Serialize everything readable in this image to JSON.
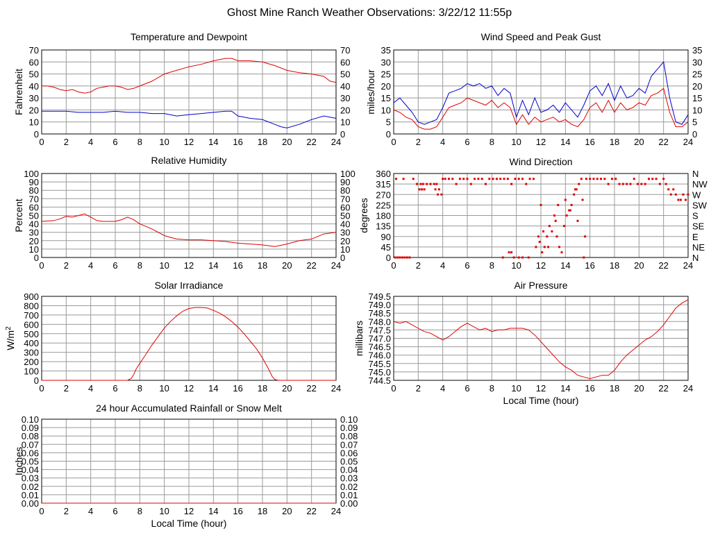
{
  "page_title": "Ghost Mine Ranch Weather Observations: 3/22/12 11:55p",
  "colors": {
    "red": "#e00000",
    "blue": "#0000cc",
    "grid": "#999999"
  },
  "chart_data": [
    {
      "id": "temp",
      "type": "line",
      "title": "Temperature and Dewpoint",
      "ylabel": "Fahrenheit",
      "xlabel": "",
      "xlim": [
        0,
        24
      ],
      "ylim": [
        0,
        70
      ],
      "x_ticks": [
        "0",
        "2",
        "4",
        "6",
        "8",
        "10",
        "12",
        "14",
        "16",
        "18",
        "20",
        "22",
        "24"
      ],
      "y_ticks": [
        "0",
        "10",
        "20",
        "30",
        "40",
        "50",
        "60",
        "70"
      ],
      "right_axis_labels": [
        "0",
        "10",
        "20",
        "30",
        "40",
        "50",
        "60",
        "70"
      ],
      "grid": true,
      "series": [
        {
          "color": "red",
          "x": [
            0,
            0.5,
            1,
            1.5,
            2,
            2.5,
            3,
            3.5,
            4,
            4.5,
            5,
            5.5,
            6,
            6.5,
            7,
            7.5,
            8,
            8.5,
            9,
            9.5,
            10,
            11,
            12,
            13,
            14,
            15,
            15.5,
            16,
            17,
            18,
            19,
            20,
            21,
            22,
            23,
            23.5,
            24
          ],
          "y": [
            40,
            40,
            39,
            37,
            36,
            37,
            35,
            34,
            35,
            38,
            39,
            40,
            40,
            39,
            37,
            38,
            40,
            42,
            44,
            47,
            50,
            53,
            56,
            58,
            61,
            63,
            63,
            61,
            61,
            60,
            57,
            53,
            51,
            50,
            48,
            44,
            43
          ]
        },
        {
          "color": "blue",
          "x": [
            0,
            1,
            2,
            3,
            4,
            5,
            6,
            7,
            8,
            9,
            10,
            11,
            12,
            13,
            14,
            15,
            15.5,
            16,
            17,
            18,
            19,
            19.5,
            20,
            21,
            22,
            23,
            24
          ],
          "y": [
            19,
            19,
            19,
            18,
            18,
            18,
            19,
            18,
            18,
            17,
            17,
            15,
            16,
            17,
            18,
            19,
            19,
            15,
            13,
            12,
            8,
            6,
            5,
            8,
            12,
            15,
            13
          ]
        }
      ]
    },
    {
      "id": "wind",
      "type": "line",
      "title": "Wind Speed and Peak Gust",
      "ylabel": "miles/hour",
      "xlabel": "",
      "xlim": [
        0,
        24
      ],
      "ylim": [
        0,
        35
      ],
      "x_ticks": [
        "0",
        "2",
        "4",
        "6",
        "8",
        "10",
        "12",
        "14",
        "16",
        "18",
        "20",
        "22",
        "24"
      ],
      "y_ticks": [
        "0",
        "5",
        "10",
        "15",
        "20",
        "25",
        "30",
        "35"
      ],
      "right_axis_labels": [
        "0",
        "5",
        "10",
        "15",
        "20",
        "25",
        "30",
        "35"
      ],
      "grid": true,
      "series": [
        {
          "color": "blue",
          "x": [
            0,
            0.5,
            1,
            1.5,
            2,
            2.5,
            3,
            3.5,
            4,
            4.5,
            5,
            5.5,
            6,
            6.5,
            7,
            7.5,
            8,
            8.5,
            9,
            9.5,
            10,
            10.5,
            11,
            11.5,
            12,
            12.5,
            13,
            13.5,
            14,
            14.5,
            15,
            15.5,
            16,
            16.5,
            17,
            17.5,
            18,
            18.5,
            19,
            19.5,
            20,
            20.5,
            21,
            21.5,
            22,
            22.5,
            23,
            23.5,
            24
          ],
          "y": [
            13,
            15,
            12,
            9,
            5,
            4,
            5,
            6,
            11,
            17,
            18,
            19,
            21,
            20,
            21,
            19,
            20,
            16,
            19,
            17,
            7,
            14,
            8,
            15,
            9,
            10,
            12,
            9,
            13,
            10,
            7,
            12,
            18,
            20,
            16,
            21,
            14,
            20,
            15,
            16,
            19,
            17,
            24,
            27,
            30,
            15,
            5,
            4,
            8
          ]
        },
        {
          "color": "red",
          "x": [
            0,
            0.5,
            1,
            1.5,
            2,
            2.5,
            3,
            3.5,
            4,
            4.5,
            5,
            5.5,
            6,
            6.5,
            7,
            7.5,
            8,
            8.5,
            9,
            9.5,
            10,
            10.5,
            11,
            11.5,
            12,
            12.5,
            13,
            13.5,
            14,
            14.5,
            15,
            15.5,
            16,
            16.5,
            17,
            17.5,
            18,
            18.5,
            19,
            19.5,
            20,
            20.5,
            21,
            21.5,
            22,
            22.5,
            23,
            23.5,
            24
          ],
          "y": [
            10,
            9,
            7,
            6,
            3,
            2,
            2,
            3,
            7,
            11,
            12,
            13,
            15,
            14,
            13,
            12,
            14,
            11,
            13,
            11,
            4,
            8,
            4,
            7,
            5,
            6,
            7,
            5,
            6,
            4,
            3,
            6,
            11,
            13,
            9,
            14,
            9,
            13,
            10,
            11,
            13,
            12,
            16,
            17,
            19,
            9,
            3,
            3,
            5
          ]
        }
      ]
    },
    {
      "id": "rh",
      "type": "line",
      "title": "Relative Humidity",
      "ylabel": "Percent",
      "xlabel": "",
      "xlim": [
        0,
        24
      ],
      "ylim": [
        0,
        100
      ],
      "x_ticks": [
        "0",
        "2",
        "4",
        "6",
        "8",
        "10",
        "12",
        "14",
        "16",
        "18",
        "20",
        "22",
        "24"
      ],
      "y_ticks": [
        "0",
        "10",
        "20",
        "30",
        "40",
        "50",
        "60",
        "70",
        "80",
        "90",
        "100"
      ],
      "right_axis_labels": [
        "0",
        "10",
        "20",
        "30",
        "40",
        "50",
        "60",
        "70",
        "80",
        "90",
        "100"
      ],
      "grid": true,
      "series": [
        {
          "color": "red",
          "x": [
            0,
            1,
            1.5,
            2,
            2.5,
            3,
            3.5,
            4,
            4.5,
            5,
            6,
            6.5,
            7,
            7.5,
            8,
            9,
            10,
            11,
            12,
            13,
            14,
            15,
            16,
            17,
            18,
            19,
            20,
            21,
            22,
            23,
            24
          ],
          "y": [
            43,
            44,
            46,
            49,
            48,
            50,
            52,
            48,
            44,
            43,
            43,
            45,
            48,
            45,
            40,
            34,
            26,
            22,
            21,
            21,
            20,
            19,
            17,
            16,
            15,
            13,
            16,
            20,
            22,
            28,
            30
          ]
        }
      ]
    },
    {
      "id": "winddir",
      "type": "scatter",
      "title": "Wind Direction",
      "ylabel": "degrees",
      "xlabel": "",
      "xlim": [
        0,
        24
      ],
      "ylim": [
        0,
        360
      ],
      "x_ticks": [
        "0",
        "2",
        "4",
        "6",
        "8",
        "10",
        "12",
        "14",
        "16",
        "18",
        "20",
        "22",
        "24"
      ],
      "y_ticks": [
        "0",
        "45",
        "90",
        "135",
        "180",
        "225",
        "270",
        "315",
        "360"
      ],
      "right_axis_labels": [
        "N",
        "NE",
        "E",
        "SE",
        "S",
        "SW",
        "W",
        "NW",
        "N"
      ],
      "grid": true,
      "series": [
        {
          "color": "red",
          "x": [
            0.1,
            0.3,
            0.5,
            0.7,
            0.9,
            1.1,
            1.3,
            0.2,
            0.8,
            1.6,
            1.9,
            2.2,
            2.4,
            2.7,
            3.0,
            3.3,
            3.5,
            3.7,
            3.9,
            2.1,
            2.3,
            2.5,
            3.4,
            3.6,
            4.0,
            4.2,
            4.5,
            4.8,
            5.1,
            5.4,
            5.7,
            6.0,
            6.3,
            6.6,
            6.9,
            7.2,
            7.5,
            7.8,
            8.1,
            8.4,
            8.7,
            9.0,
            9.3,
            9.6,
            9.9,
            10.2,
            10.5,
            10.8,
            11.1,
            11.4,
            9.8,
            10.5,
            11.6,
            11.8,
            12.0,
            12.1,
            12.3,
            12.5,
            12.7,
            12.9,
            13.1,
            13.3,
            13.5,
            13.7,
            13.9,
            14.1,
            14.3,
            14.5,
            14.7,
            14.9,
            15.1,
            15.3,
            15.5,
            15.7,
            16.0,
            16.3,
            16.6,
            16.9,
            17.2,
            17.5,
            17.8,
            18.1,
            18.4,
            18.7,
            19.0,
            19.3,
            19.6,
            19.9,
            20.2,
            20.5,
            20.8,
            21.1,
            21.4,
            21.7,
            22.0,
            22.2,
            22.4,
            22.6,
            22.8,
            23.0,
            23.2,
            23.4,
            23.6,
            23.8,
            24.0,
            9.4,
            10.2,
            11.9,
            12.2,
            13.4,
            14.0,
            14.4,
            15.0,
            15.6,
            8.9,
            9.6,
            11.0,
            12.6,
            13.2,
            14.8,
            15.4
          ],
          "y": [
            0,
            0,
            0,
            0,
            0,
            0,
            0,
            337,
            337,
            337,
            315,
            315,
            315,
            315,
            315,
            315,
            315,
            292,
            270,
            292,
            292,
            292,
            292,
            270,
            337,
            337,
            337,
            337,
            315,
            337,
            337,
            337,
            315,
            337,
            337,
            337,
            315,
            337,
            337,
            337,
            337,
            337,
            337,
            315,
            337,
            337,
            337,
            315,
            337,
            337,
            0,
            0,
            45,
            90,
            225,
            22,
            45,
            90,
            135,
            112,
            180,
            90,
            45,
            22,
            135,
            180,
            202,
            225,
            270,
            292,
            315,
            337,
            0,
            337,
            337,
            337,
            337,
            337,
            337,
            315,
            337,
            337,
            315,
            315,
            315,
            315,
            337,
            315,
            315,
            315,
            337,
            337,
            337,
            315,
            337,
            315,
            292,
            270,
            292,
            270,
            247,
            247,
            270,
            247,
            270,
            22,
            0,
            67,
            112,
            225,
            247,
            202,
            157,
            90,
            0,
            22,
            0,
            45,
            157,
            292,
            247
          ]
        }
      ]
    },
    {
      "id": "solar",
      "type": "line",
      "title": "Solar Irradiance",
      "ylabel": "W/m2",
      "xlabel": "",
      "xlim": [
        0,
        24
      ],
      "ylim": [
        0,
        900
      ],
      "x_ticks": [
        "0",
        "2",
        "4",
        "6",
        "8",
        "10",
        "12",
        "14",
        "16",
        "18",
        "20",
        "22",
        "24"
      ],
      "y_ticks": [
        "0",
        "100",
        "200",
        "300",
        "400",
        "500",
        "600",
        "700",
        "800",
        "900"
      ],
      "right_axis_labels": [],
      "grid": true,
      "series": [
        {
          "color": "red",
          "x": [
            0,
            6,
            7,
            7.3,
            7.5,
            7.7,
            8,
            8.5,
            9,
            9.5,
            10,
            10.5,
            11,
            11.5,
            12,
            12.5,
            13,
            13.5,
            14,
            14.5,
            15,
            15.5,
            16,
            16.5,
            17,
            17.5,
            18,
            18.5,
            18.8,
            19,
            19.3,
            20,
            24
          ],
          "y": [
            0,
            0,
            0,
            20,
            60,
            120,
            180,
            280,
            380,
            470,
            560,
            630,
            690,
            740,
            770,
            780,
            780,
            775,
            750,
            720,
            680,
            630,
            570,
            500,
            420,
            340,
            240,
            120,
            40,
            10,
            0,
            0,
            0
          ]
        }
      ]
    },
    {
      "id": "pressure",
      "type": "line",
      "title": "Air Pressure",
      "ylabel": "millibars",
      "xlabel": "Local Time (hour)",
      "xlim": [
        0,
        24
      ],
      "ylim": [
        744.5,
        749.5
      ],
      "x_ticks": [
        "0",
        "2",
        "4",
        "6",
        "8",
        "10",
        "12",
        "14",
        "16",
        "18",
        "20",
        "22",
        "24"
      ],
      "y_ticks": [
        "744.5",
        "745.0",
        "745.5",
        "746.0",
        "746.5",
        "747.0",
        "747.5",
        "748.0",
        "748.5",
        "749.0",
        "749.5"
      ],
      "right_axis_labels": [],
      "grid": true,
      "series": [
        {
          "color": "red",
          "x": [
            0,
            0.5,
            1,
            1.5,
            2,
            2.5,
            3,
            3.5,
            4,
            4.5,
            5,
            5.5,
            6,
            6.5,
            7,
            7.5,
            8,
            8.5,
            9,
            9.5,
            10,
            10.5,
            11,
            11.5,
            12,
            12.5,
            13,
            13.5,
            14,
            14.5,
            15,
            15.5,
            16,
            16.5,
            17,
            17.5,
            18,
            18.5,
            19,
            19.5,
            20,
            20.5,
            21,
            21.5,
            22,
            22.5,
            23,
            23.5,
            24
          ],
          "y": [
            748.0,
            747.9,
            748.0,
            747.8,
            747.6,
            747.4,
            747.3,
            747.1,
            746.9,
            747.1,
            747.4,
            747.7,
            747.9,
            747.7,
            747.5,
            747.6,
            747.4,
            747.5,
            747.5,
            747.6,
            747.6,
            747.6,
            747.5,
            747.2,
            746.8,
            746.4,
            746.0,
            745.6,
            745.3,
            745.1,
            744.8,
            744.7,
            744.6,
            744.7,
            744.8,
            744.8,
            745.1,
            745.6,
            746.0,
            746.3,
            746.6,
            746.9,
            747.1,
            747.4,
            747.8,
            748.3,
            748.8,
            749.1,
            749.3
          ]
        }
      ]
    },
    {
      "id": "rain",
      "type": "line",
      "title": "24 hour Accumulated Rainfall or Snow Melt",
      "ylabel": "Inches",
      "xlabel": "Local Time (hour)",
      "xlim": [
        0,
        24
      ],
      "ylim": [
        0,
        0.1
      ],
      "x_ticks": [
        "0",
        "2",
        "4",
        "6",
        "8",
        "10",
        "12",
        "14",
        "16",
        "18",
        "20",
        "22",
        "24"
      ],
      "y_ticks": [
        "0.00",
        "0.01",
        "0.02",
        "0.03",
        "0.04",
        "0.05",
        "0.06",
        "0.07",
        "0.08",
        "0.09",
        "0.10"
      ],
      "right_axis_labels": [
        "0.00",
        "0.01",
        "0.02",
        "0.03",
        "0.04",
        "0.05",
        "0.06",
        "0.07",
        "0.08",
        "0.09",
        "0.10"
      ],
      "grid": true,
      "series": [
        {
          "color": "red",
          "x": [
            0,
            24
          ],
          "y": [
            0,
            0
          ]
        }
      ]
    }
  ]
}
